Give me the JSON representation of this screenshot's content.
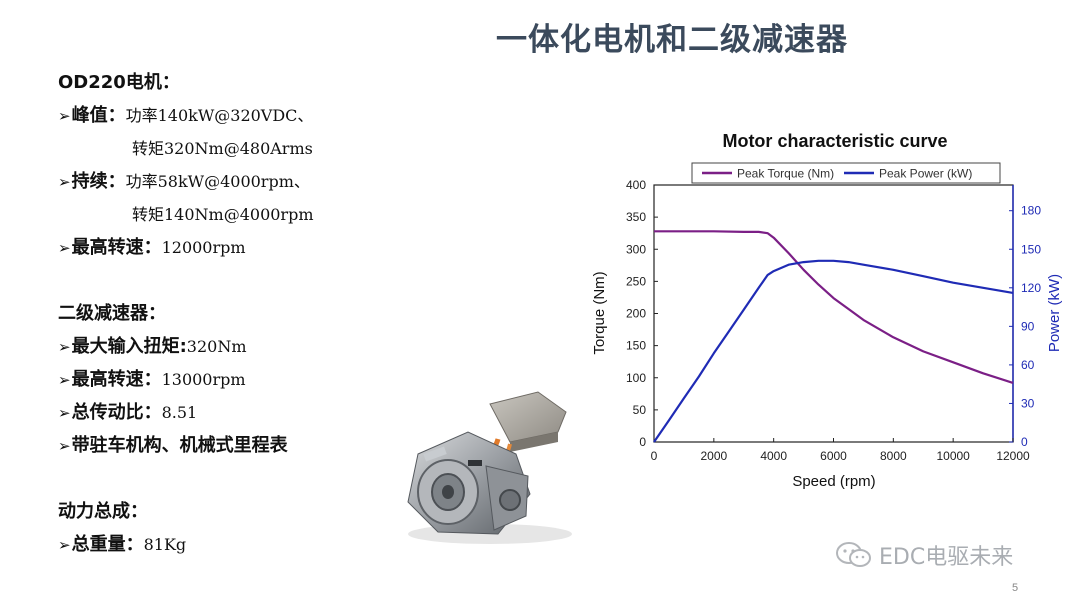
{
  "slide": {
    "title": "一体化电机和二级减速器",
    "page_number": "5",
    "watermark": "EDC电驱未来"
  },
  "specs": {
    "motor_header": "OD220电机：",
    "peak_label": "峰值：",
    "peak_power": "功率140kW@320VDC、",
    "peak_torque": "转矩320Nm@480Arms",
    "cont_label": "持续：",
    "cont_power": "功率58kW@4000rpm、",
    "cont_torque": "转矩140Nm@4000rpm",
    "max_speed_label": "最高转速：",
    "max_speed_value": "12000rpm",
    "reducer_header": "二级减速器：",
    "input_torque_label": "最大输入扭矩:",
    "input_torque_value": "320Nm",
    "reducer_speed_label": "最高转速：",
    "reducer_speed_value": "13000rpm",
    "ratio_label": "总传动比：",
    "ratio_value": "8.51",
    "park_label": "带驻车机构、机械式里程表",
    "assembly_header": "动力总成：",
    "weight_label": "总重量：",
    "weight_value": "81Kg"
  },
  "chart_data": {
    "type": "line",
    "title": "Motor characteristic curve",
    "xlabel": "Speed (rpm)",
    "ylabel": "Torque (Nm)",
    "y2label": "Power (kW)",
    "xlim": [
      0,
      12000
    ],
    "ylim": [
      0,
      400
    ],
    "y2lim": [
      0,
      200
    ],
    "xticks": [
      0,
      2000,
      4000,
      6000,
      8000,
      10000,
      12000
    ],
    "yticks": [
      0,
      50,
      100,
      150,
      200,
      250,
      300,
      350,
      400
    ],
    "y2ticks": [
      0,
      30,
      60,
      90,
      120,
      150,
      180
    ],
    "legend_position": "top",
    "series": [
      {
        "name": "Peak Torque (Nm)",
        "color": "#7b1f86",
        "axis": "left",
        "x": [
          0,
          1000,
          2000,
          3000,
          3500,
          3800,
          4000,
          4500,
          5000,
          5500,
          6000,
          6500,
          7000,
          8000,
          9000,
          10000,
          11000,
          12000
        ],
        "y": [
          328,
          328,
          328,
          327,
          327,
          325,
          318,
          294,
          268,
          245,
          224,
          207,
          190,
          163,
          141,
          124,
          107,
          92
        ]
      },
      {
        "name": "Peak Power (kW)",
        "color": "#1f2bb5",
        "axis": "right",
        "x": [
          0,
          500,
          1000,
          1500,
          2000,
          2500,
          3000,
          3500,
          3800,
          4000,
          4500,
          5000,
          5500,
          6000,
          6500,
          7000,
          8000,
          9000,
          10000,
          11000,
          12000
        ],
        "y": [
          0,
          17,
          34,
          51,
          69,
          86,
          103,
          120,
          130,
          133,
          138,
          140,
          141,
          141,
          140,
          138,
          134,
          129,
          124,
          120,
          116
        ]
      }
    ]
  },
  "colors": {
    "title": "#3b4a5c",
    "torque": "#7b1f86",
    "power": "#1f2bb5",
    "watermark": "#a9adb2"
  },
  "icons": [
    "arrow-bullet-icon",
    "wechat-watermark-icon"
  ],
  "image": "motor-assembly-photo"
}
